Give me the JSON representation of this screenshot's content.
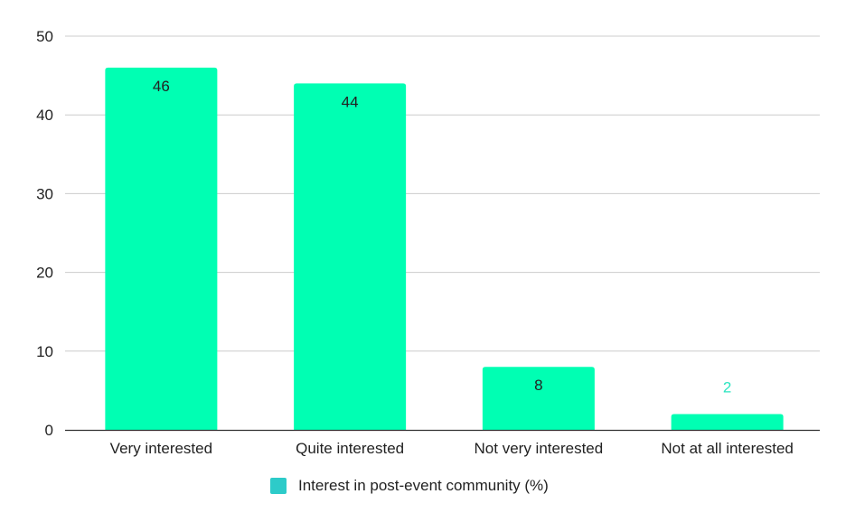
{
  "chart_data": {
    "type": "bar",
    "categories": [
      "Very interested",
      "Quite interested",
      "Not very interested",
      "Not at all interested"
    ],
    "series": [
      {
        "name": "Interest in post-event community (%)",
        "values": [
          46,
          44,
          8,
          2
        ]
      }
    ],
    "data_labels": [
      "46",
      "44",
      "8",
      "2"
    ],
    "yticks": [
      0,
      10,
      20,
      30,
      40,
      50
    ],
    "ylim": [
      0,
      50
    ],
    "grid": true,
    "legend_position": "bottom",
    "bar_color": "#00FFB3",
    "legend_swatch_color": "#2DCBC9",
    "label_color_inside": "#222222",
    "label_color_outside": "#2DE5C0"
  }
}
